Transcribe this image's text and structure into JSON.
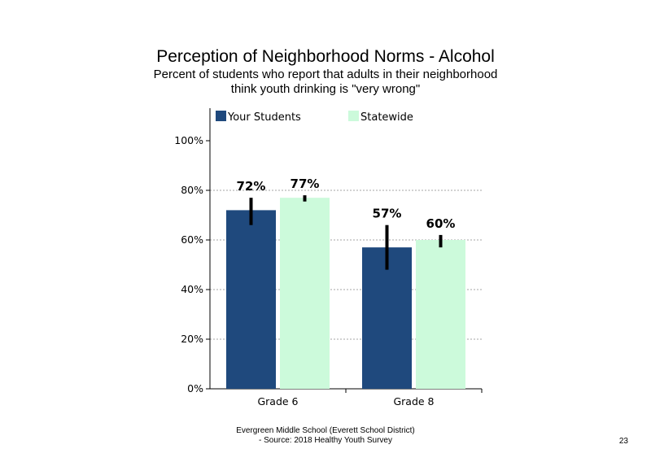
{
  "header": {
    "title": "Perception of Neighborhood Norms - Alcohol",
    "subtitle_line1": "Percent of students who report that adults in their neighborhood",
    "subtitle_line2": "think youth drinking is \"very wrong\""
  },
  "footer": {
    "line1": "Evergreen Middle  School (Everett School District)",
    "line2": "- Source: 2018 Healthy  Youth Survey",
    "page_number": "23"
  },
  "colors": {
    "your_students": "#1f497d",
    "statewide": "#ccfadb"
  },
  "chart_data": {
    "type": "bar",
    "title": "Perception of Neighborhood Norms - Alcohol",
    "subtitle": "Percent of students who report that adults in their neighborhood think youth drinking is \"very wrong\"",
    "categories": [
      "Grade 6",
      "Grade 8"
    ],
    "series": [
      {
        "name": "Your Students",
        "values": [
          72,
          57
        ],
        "labels": [
          "72%",
          "57%"
        ],
        "error_low": [
          66,
          48
        ],
        "error_high": [
          77,
          66
        ]
      },
      {
        "name": "Statewide",
        "values": [
          77,
          60
        ],
        "labels": [
          "77%",
          "60%"
        ],
        "error_low": [
          75.5,
          57
        ],
        "error_high": [
          78,
          62
        ]
      }
    ],
    "ylim": [
      0,
      110
    ],
    "yticks": [
      0,
      20,
      40,
      60,
      80,
      100
    ],
    "ytick_labels": [
      "0%",
      "20%",
      "40%",
      "60%",
      "80%",
      "100%"
    ],
    "gridlines": "dotted at 20%, 40%, 60%, 80%",
    "legend_position": "top"
  }
}
